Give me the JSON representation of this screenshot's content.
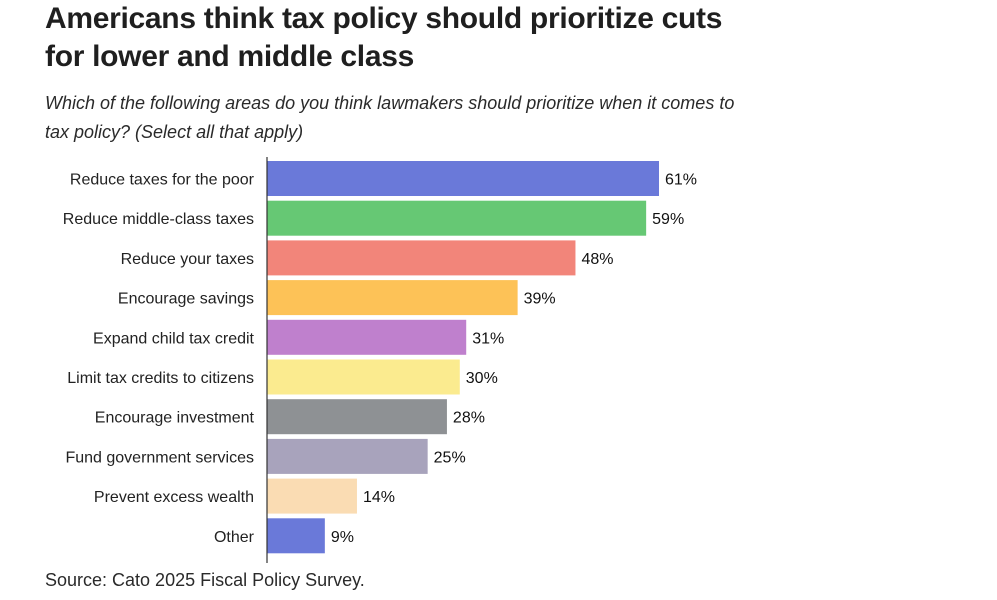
{
  "chart_data": {
    "type": "bar",
    "orientation": "horizontal",
    "title": "Americans think tax policy should prioritize cuts for lower and middle class",
    "subtitle": "Which of the following areas do you think lawmakers should prioritize when it comes to tax policy? (Select all that apply)",
    "source": "Source: Cato 2025 Fiscal Policy Survey.",
    "xlabel": "",
    "ylabel": "",
    "xlim": [
      0,
      61
    ],
    "grid": false,
    "legend": "none",
    "value_suffix": "%",
    "categories": [
      "Reduce taxes for the poor",
      "Reduce middle-class taxes",
      "Reduce your taxes",
      "Encourage savings",
      "Expand child tax credit",
      "Limit tax credits to citizens",
      "Encourage investment",
      "Fund government services",
      "Prevent excess wealth",
      "Other"
    ],
    "values": [
      61,
      59,
      48,
      39,
      31,
      30,
      28,
      25,
      14,
      9
    ],
    "colors": [
      "#6a79d9",
      "#66c874",
      "#f2857a",
      "#fdc257",
      "#bf80cd",
      "#fbeb8f",
      "#8e9194",
      "#a8a3bc",
      "#fadcb3",
      "#6a79d9"
    ]
  }
}
